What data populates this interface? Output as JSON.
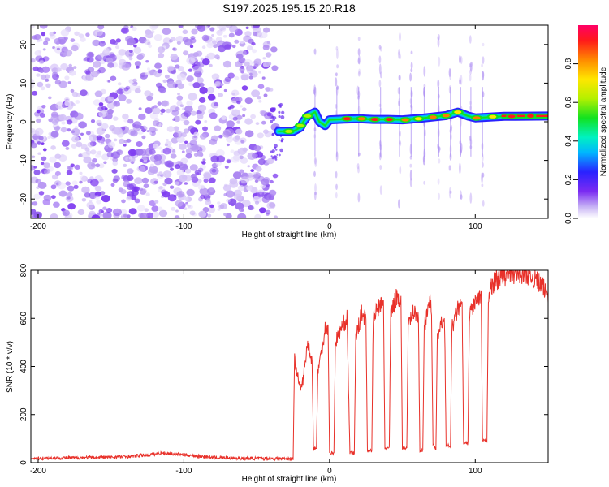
{
  "title": "S197.2025.195.15.20.R18",
  "chart_data": [
    {
      "type": "heatmap",
      "title": "S197.2025.195.15.20.R18",
      "xlabel": "Height of straight line (km)",
      "ylabel": "Frequency (Hz)",
      "xlim": [
        -205,
        150
      ],
      "ylim": [
        -25,
        25
      ],
      "x_ticks": [
        -200,
        -100,
        0,
        100
      ],
      "x_tick_labels": [
        "-200",
        "-100",
        "0",
        "100"
      ],
      "y_ticks": [
        -20,
        -10,
        0,
        10,
        20
      ],
      "y_tick_labels": [
        "-20",
        "-10",
        "0",
        "10",
        "20"
      ],
      "noise_region": {
        "x": [
          -205,
          -37
        ],
        "y": [
          -25,
          25
        ]
      },
      "spur": {
        "x": [
          -40,
          -32
        ],
        "freq": [
          -10,
          5
        ]
      },
      "ridge": [
        {
          "x": -35,
          "freq": -2.5
        },
        {
          "x": -25,
          "freq": -2.5
        },
        {
          "x": -20,
          "freq": -1.5
        },
        {
          "x": -18,
          "freq": 0
        },
        {
          "x": -15,
          "freq": 1.5
        },
        {
          "x": -10,
          "freq": 2.5
        },
        {
          "x": -7,
          "freq": 0
        },
        {
          "x": -3,
          "freq": -1
        },
        {
          "x": 0,
          "freq": 0.5
        },
        {
          "x": 10,
          "freq": 0.7
        },
        {
          "x": 20,
          "freq": 0.8
        },
        {
          "x": 30,
          "freq": 0.6
        },
        {
          "x": 40,
          "freq": 0.6
        },
        {
          "x": 50,
          "freq": 0.5
        },
        {
          "x": 60,
          "freq": 0.8
        },
        {
          "x": 70,
          "freq": 1.2
        },
        {
          "x": 80,
          "freq": 1.6
        },
        {
          "x": 88,
          "freq": 2.5
        },
        {
          "x": 95,
          "freq": 1.5
        },
        {
          "x": 100,
          "freq": 1.0
        },
        {
          "x": 110,
          "freq": 1.2
        },
        {
          "x": 120,
          "freq": 1.4
        },
        {
          "x": 150,
          "freq": 1.5
        }
      ],
      "peaks": [
        {
          "x": -28,
          "freq": -2.5,
          "amp": 0.7
        },
        {
          "x": -20,
          "freq": -1.0,
          "amp": 0.6
        },
        {
          "x": -15,
          "freq": 1.5,
          "amp": 0.6
        },
        {
          "x": 12,
          "freq": 0.8,
          "amp": 0.95
        },
        {
          "x": 22,
          "freq": 0.8,
          "amp": 0.9
        },
        {
          "x": 31,
          "freq": 0.6,
          "amp": 0.95
        },
        {
          "x": 41,
          "freq": 0.6,
          "amp": 0.95
        },
        {
          "x": 52,
          "freq": 0.5,
          "amp": 0.85
        },
        {
          "x": 61,
          "freq": 0.8,
          "amp": 0.8
        },
        {
          "x": 71,
          "freq": 1.2,
          "amp": 0.9
        },
        {
          "x": 80,
          "freq": 1.6,
          "amp": 0.85
        },
        {
          "x": 88,
          "freq": 2.5,
          "amp": 0.75
        },
        {
          "x": 101,
          "freq": 1.0,
          "amp": 0.85
        },
        {
          "x": 112,
          "freq": 1.3,
          "amp": 0.8
        },
        {
          "x": 125,
          "freq": 1.4,
          "amp": 0.95
        },
        {
          "x": 138,
          "freq": 1.5,
          "amp": 0.98
        }
      ],
      "vertical_smears": [
        -10,
        5,
        20,
        35,
        48,
        56,
        65,
        75,
        83,
        90,
        97,
        105
      ],
      "colorbar": {
        "label": "Normalized spectral amplitude",
        "range": [
          0,
          1
        ],
        "ticks": [
          0.0,
          0.2,
          0.4,
          0.6,
          0.8
        ],
        "tick_labels": [
          "0.0",
          "0.2",
          "0.4",
          "0.6",
          "0.8"
        ]
      }
    },
    {
      "type": "line",
      "title": "",
      "xlabel": "Height of straight line (km)",
      "ylabel": "SNR (10 * v/v)",
      "xlim": [
        -205,
        150
      ],
      "ylim": [
        0,
        800
      ],
      "x_ticks": [
        -200,
        -100,
        0,
        100
      ],
      "x_tick_labels": [
        "-200",
        "-100",
        "0",
        "100"
      ],
      "y_ticks": [
        0,
        200,
        400,
        600,
        800
      ],
      "y_tick_labels": [
        "0",
        "200",
        "400",
        "600",
        "800"
      ],
      "color": "#e8312a",
      "series": [
        {
          "values": [
            [
              -205,
              18
            ],
            [
              -180,
              20
            ],
            [
              -160,
              22
            ],
            [
              -140,
              25
            ],
            [
              -125,
              32
            ],
            [
              -115,
              40
            ],
            [
              -105,
              35
            ],
            [
              -95,
              30
            ],
            [
              -80,
              22
            ],
            [
              -60,
              18
            ],
            [
              -40,
              17
            ],
            [
              -25,
              17
            ],
            [
              -24,
              430
            ],
            [
              -20,
              300
            ],
            [
              -18,
              350
            ],
            [
              -15,
              500
            ],
            [
              -12,
              420
            ],
            [
              -11,
              60
            ],
            [
              -9,
              60
            ],
            [
              -8,
              380
            ],
            [
              -5,
              480
            ],
            [
              -3,
              560
            ],
            [
              -1,
              560
            ],
            [
              0,
              40
            ],
            [
              3,
              40
            ],
            [
              4,
              500
            ],
            [
              8,
              560
            ],
            [
              12,
              600
            ],
            [
              14,
              40
            ],
            [
              17,
              40
            ],
            [
              18,
              520
            ],
            [
              22,
              620
            ],
            [
              25,
              600
            ],
            [
              26,
              50
            ],
            [
              29,
              50
            ],
            [
              30,
              600
            ],
            [
              34,
              650
            ],
            [
              37,
              660
            ],
            [
              38,
              60
            ],
            [
              41,
              60
            ],
            [
              42,
              620
            ],
            [
              46,
              690
            ],
            [
              49,
              680
            ],
            [
              50,
              60
            ],
            [
              53,
              60
            ],
            [
              54,
              560
            ],
            [
              58,
              640
            ],
            [
              61,
              600
            ],
            [
              62,
              50
            ],
            [
              64,
              50
            ],
            [
              65,
              560
            ],
            [
              68,
              670
            ],
            [
              70,
              640
            ],
            [
              71,
              80
            ],
            [
              73,
              50
            ],
            [
              74,
              520
            ],
            [
              78,
              600
            ],
            [
              79,
              580
            ],
            [
              80,
              70
            ],
            [
              83,
              70
            ],
            [
              84,
              560
            ],
            [
              88,
              640
            ],
            [
              91,
              650
            ],
            [
              92,
              80
            ],
            [
              95,
              80
            ],
            [
              96,
              620
            ],
            [
              100,
              670
            ],
            [
              104,
              680
            ],
            [
              105,
              90
            ],
            [
              108,
              90
            ],
            [
              109,
              700
            ],
            [
              114,
              760
            ],
            [
              120,
              780
            ],
            [
              128,
              790
            ],
            [
              135,
              790
            ],
            [
              142,
              760
            ],
            [
              150,
              700
            ]
          ]
        }
      ]
    }
  ]
}
